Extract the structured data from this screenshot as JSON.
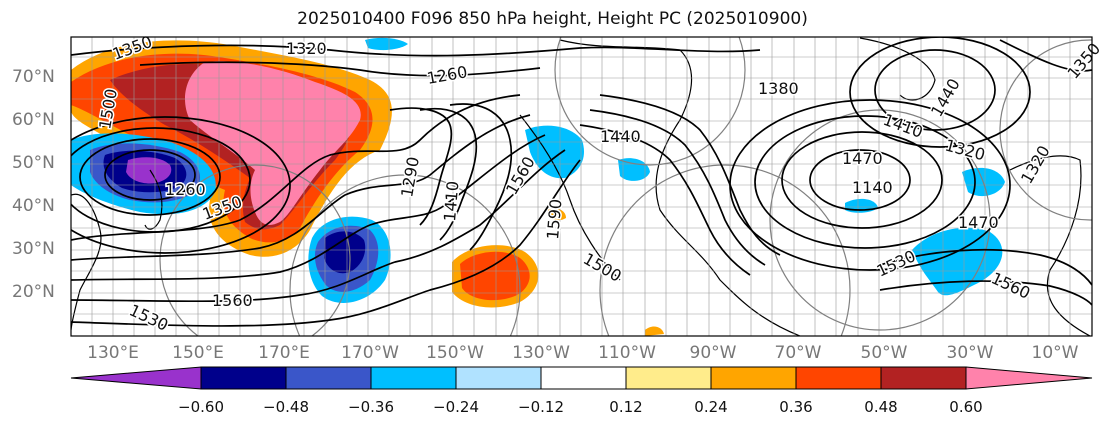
{
  "title": "2025010400 F096 850 hPa height, Height PC (2025010900)",
  "colors": {
    "fill_levels": [
      "#9932cc",
      "#00008b",
      "#3a56c9",
      "#00bfff",
      "#b0e2ff",
      "#ffffff",
      "#ffec8b",
      "#ffa500",
      "#ff4500",
      "#b22222",
      "#ff82ab"
    ],
    "contour": "#000000",
    "circle": "#808080"
  },
  "lat_labels": [
    "70°N",
    "60°N",
    "50°N",
    "40°N",
    "30°N",
    "20°N"
  ],
  "lon_labels": [
    "130°E",
    "150°E",
    "170°E",
    "170°W",
    "150°W",
    "130°W",
    "110°W",
    "90°W",
    "70°W",
    "50°W",
    "30°W",
    "10°W"
  ],
  "colorbar_ticks": [
    "−0.60",
    "−0.48",
    "−0.36",
    "−0.24",
    "−0.12",
    "0.12",
    "0.24",
    "0.36",
    "0.48",
    "0.60"
  ],
  "contour_labels": {
    "c1": "1350",
    "c2": "1320",
    "c3": "1260",
    "c4": "1380",
    "c5": "1440",
    "c6": "1440",
    "c7": "1410",
    "c8": "1470",
    "c9": "1320",
    "c10": "1290",
    "c11": "1410",
    "c12": "1560",
    "c13": "1590",
    "c14": "1500",
    "c15": "1530",
    "c16": "1560",
    "c17": "1530",
    "c18": "1470",
    "c19": "1560",
    "c20": "1140",
    "c21": "1260",
    "c22": "1350",
    "c23": "1320",
    "c24": "1500",
    "c25": "1350"
  }
}
